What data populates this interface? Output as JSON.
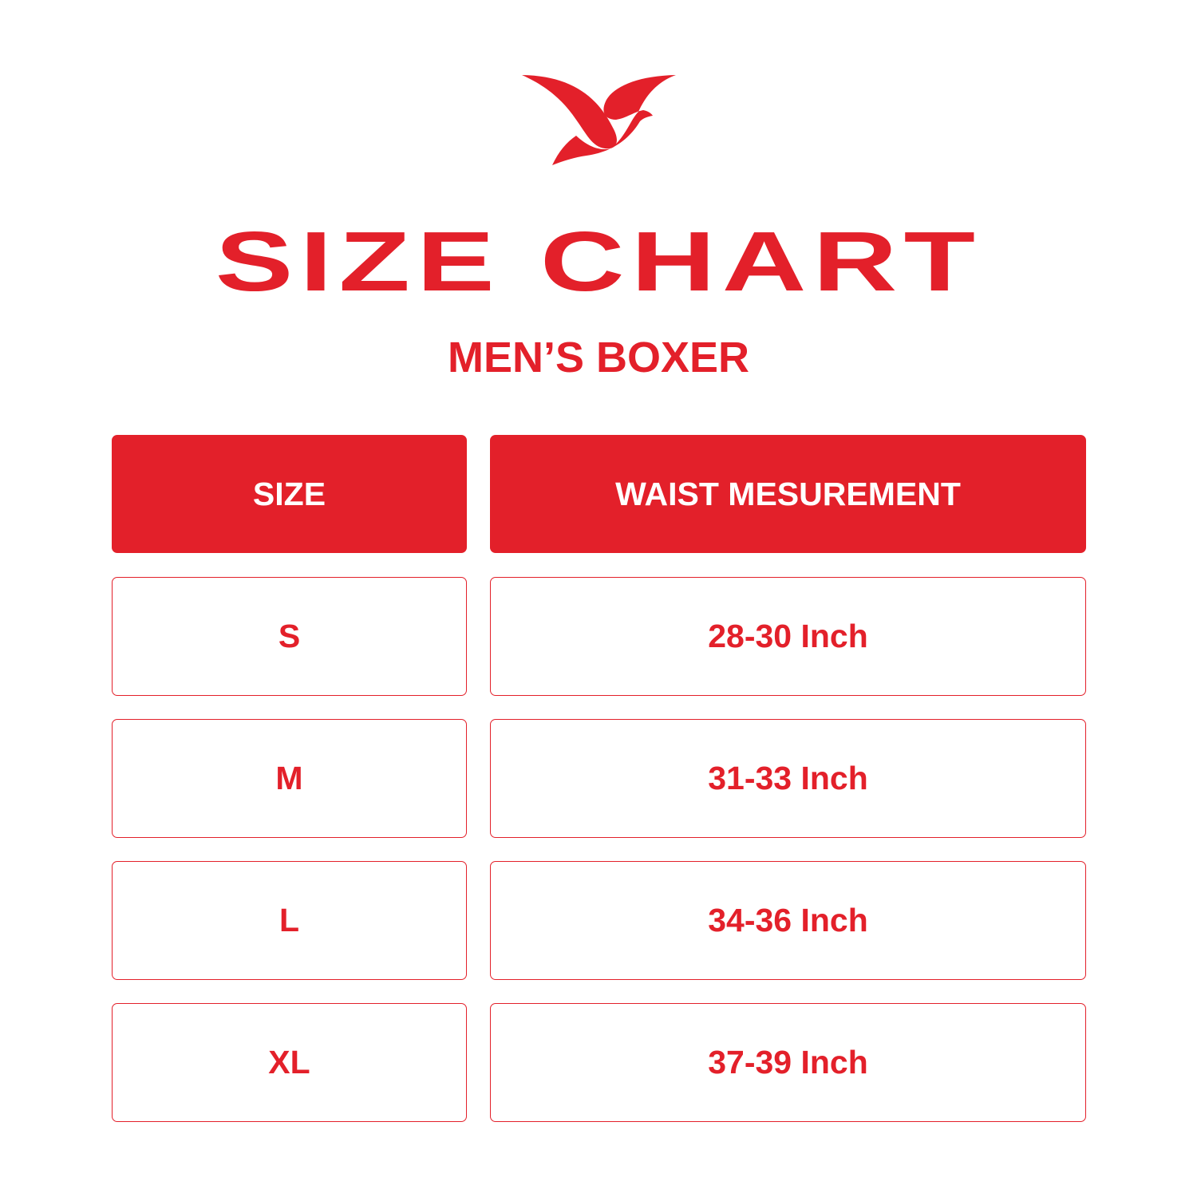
{
  "brand": {
    "logo": "bird-logo",
    "color": "#e3202a"
  },
  "title": "SIZE CHART",
  "subtitle": "MEN’S BOXER",
  "table": {
    "headers": [
      "SIZE",
      "WAIST MESUREMENT"
    ],
    "rows": [
      {
        "size": "S",
        "waist": "28-30 Inch"
      },
      {
        "size": "M",
        "waist": "31-33 Inch"
      },
      {
        "size": "L",
        "waist": "34-36 Inch"
      },
      {
        "size": "XL",
        "waist": "37-39 Inch"
      }
    ]
  }
}
